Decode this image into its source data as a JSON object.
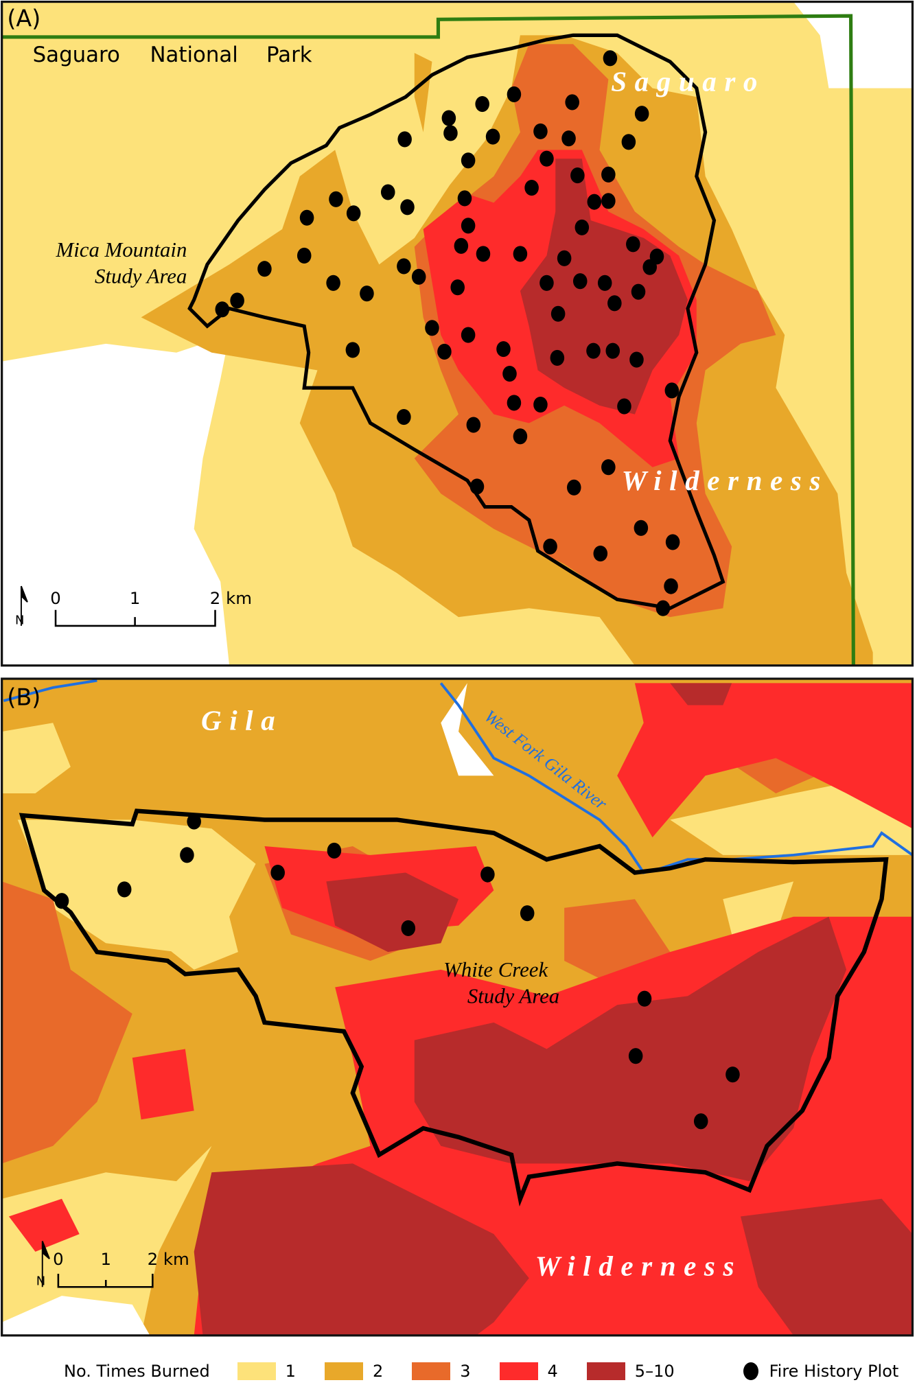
{
  "colors": {
    "burn_1": "#fde27a",
    "burn_2": "#e8a82a",
    "burn_3": "#e86a2a",
    "burn_4": "#fe2b2b",
    "burn_5_10": "#b72b2b",
    "park_boundary": "#2e7d12",
    "river": "#1f6fe0",
    "unburned": "#ffffff"
  },
  "panel_a": {
    "label": "(A)",
    "park_words": [
      "Saguaro",
      "National",
      "Park"
    ],
    "wilderness_words": [
      "Saguaro",
      "Wilderness"
    ],
    "study_area": [
      "Mica Mountain",
      "Study Area"
    ],
    "scale": {
      "ticks": [
        "0",
        "1",
        "2 km"
      ],
      "north": "N"
    }
  },
  "panel_b": {
    "label": "(B)",
    "wilderness_words": [
      "Gila",
      "Wilderness"
    ],
    "river": "West Fork Gila River",
    "study_area": [
      "White Creek",
      "Study Area"
    ],
    "scale": {
      "ticks": [
        "0",
        "1",
        "2 km"
      ],
      "north": "N"
    }
  },
  "legend": {
    "title": "No. Times Burned",
    "classes": [
      {
        "label": "1",
        "color": "#fde27a"
      },
      {
        "label": "2",
        "color": "#e8a82a"
      },
      {
        "label": "3",
        "color": "#e86a2a"
      },
      {
        "label": "4",
        "color": "#fe2b2b"
      },
      {
        "label": "5–10",
        "color": "#b72b2b"
      }
    ],
    "plot_label": "Fire History Plot"
  }
}
